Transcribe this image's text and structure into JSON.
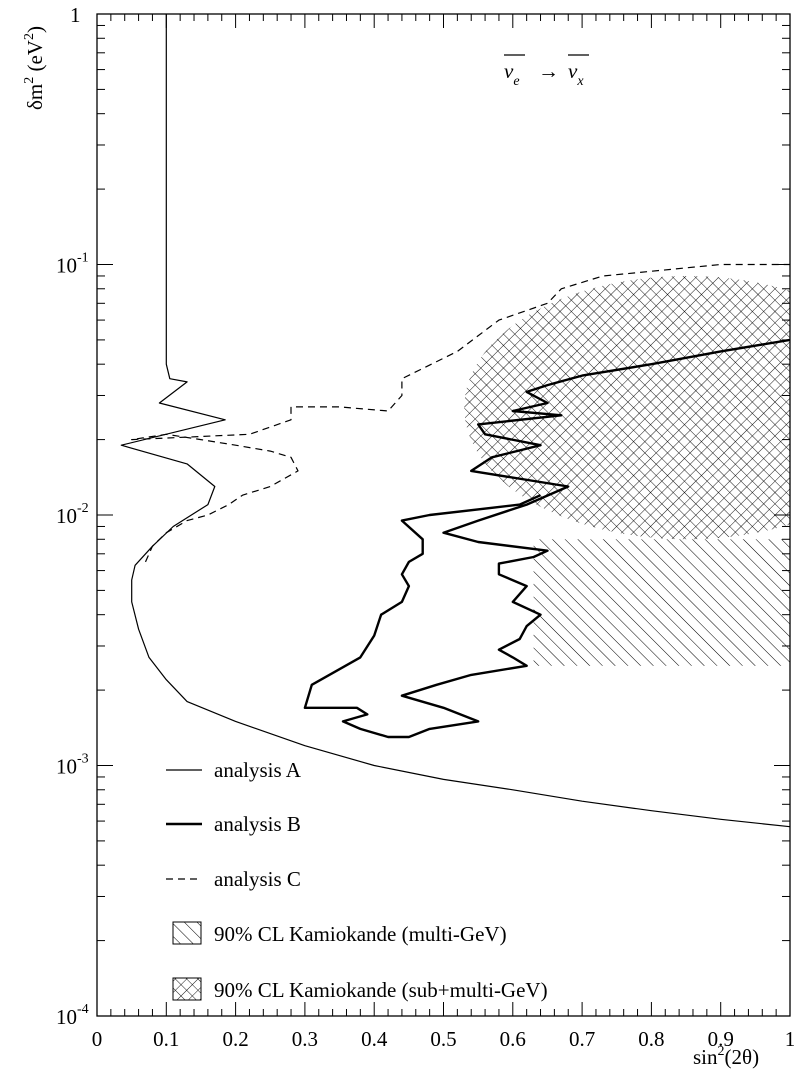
{
  "chart_data": {
    "type": "line",
    "title": "",
    "annotation": {
      "nu_left": "ν",
      "nu_left_sub": "e",
      "arrow": "→",
      "nu_right": "ν",
      "nu_right_sub": "x"
    },
    "xlabel": {
      "base": "sin",
      "sup": "2",
      "rest": "(2θ)"
    },
    "ylabel": {
      "base": "δm",
      "sup": "2",
      "unit_open": " (eV",
      "unit_sup": "2",
      "unit_close": ")"
    },
    "xlim": [
      0,
      1
    ],
    "ylim": [
      0.0001,
      1
    ],
    "yscale": "log",
    "xticks": [
      "0",
      "0.1",
      "0.2",
      "0.3",
      "0.4",
      "0.5",
      "0.6",
      "0.7",
      "0.8",
      "0.9",
      "1"
    ],
    "yticks": [
      {
        "base": "1",
        "exp": ""
      },
      {
        "base": "10",
        "exp": "-1"
      },
      {
        "base": "10",
        "exp": "-2"
      },
      {
        "base": "10",
        "exp": "-3"
      },
      {
        "base": "10",
        "exp": "-4"
      }
    ],
    "legend_position": "bottom-left",
    "legend": [
      {
        "label": "analysis A",
        "style": "thin-solid"
      },
      {
        "label": "analysis B",
        "style": "thick-solid"
      },
      {
        "label": "analysis C",
        "style": "dashed"
      },
      {
        "label": "90% CL Kamiokande (multi-GeV)",
        "style": "hatch"
      },
      {
        "label": "90% CL Kamiokande (sub+multi-GeV)",
        "style": "crosshatch"
      }
    ],
    "series": [
      {
        "name": "analysis A",
        "style": "thin-solid",
        "x": [
          0.1,
          0.1,
          0.1,
          0.1,
          0.1,
          0.1,
          0.1,
          0.1,
          0.105,
          0.13,
          0.09,
          0.185,
          0.035,
          0.13,
          0.17,
          0.16,
          0.11,
          0.08,
          0.055,
          0.05,
          0.05,
          0.06,
          0.075,
          0.1,
          0.13,
          0.2,
          0.3,
          0.4,
          0.5,
          0.6,
          0.7,
          0.8,
          0.9,
          1.0
        ],
        "y": [
          1.0,
          0.5,
          0.3,
          0.2,
          0.1,
          0.07,
          0.05,
          0.04,
          0.035,
          0.034,
          0.028,
          0.024,
          0.019,
          0.016,
          0.013,
          0.011,
          0.009,
          0.0075,
          0.0063,
          0.0055,
          0.0045,
          0.0035,
          0.0027,
          0.0022,
          0.0018,
          0.0015,
          0.0012,
          0.001,
          0.00088,
          0.0008,
          0.00072,
          0.00066,
          0.00061,
          0.00057
        ]
      },
      {
        "name": "analysis B",
        "style": "thick-solid",
        "x": [
          0.64,
          0.61,
          0.48,
          0.44,
          0.47,
          0.47,
          0.45,
          0.44,
          0.45,
          0.44,
          0.41,
          0.4,
          0.38,
          0.31,
          0.3,
          0.375,
          0.39,
          0.355,
          0.38,
          0.42,
          0.45,
          0.48,
          0.55,
          0.5,
          0.44,
          0.49,
          0.54,
          0.62,
          0.6,
          0.58,
          0.61,
          0.62,
          0.64,
          0.6,
          0.62,
          0.58,
          0.58,
          0.63,
          0.65,
          0.55,
          0.5,
          0.55,
          0.62,
          0.68,
          0.54,
          0.57,
          0.64,
          0.56,
          0.55,
          0.67,
          0.6,
          0.65,
          0.62,
          0.65,
          0.7,
          0.8,
          0.9,
          1.0
        ],
        "y": [
          0.012,
          0.011,
          0.01,
          0.0095,
          0.008,
          0.007,
          0.0065,
          0.0058,
          0.0052,
          0.0045,
          0.004,
          0.0033,
          0.0027,
          0.0021,
          0.0017,
          0.0017,
          0.0016,
          0.0015,
          0.0014,
          0.0013,
          0.0013,
          0.0014,
          0.0015,
          0.0017,
          0.0019,
          0.0021,
          0.0023,
          0.0025,
          0.0027,
          0.0029,
          0.0032,
          0.0036,
          0.004,
          0.0045,
          0.0052,
          0.0058,
          0.0064,
          0.0068,
          0.0072,
          0.0078,
          0.0085,
          0.0095,
          0.011,
          0.013,
          0.015,
          0.017,
          0.019,
          0.021,
          0.023,
          0.025,
          0.026,
          0.028,
          0.031,
          0.033,
          0.036,
          0.04,
          0.045,
          0.05
        ]
      },
      {
        "name": "analysis C",
        "style": "dashed",
        "x": [
          0.07,
          0.08,
          0.1,
          0.13,
          0.16,
          0.19,
          0.21,
          0.25,
          0.29,
          0.28,
          0.25,
          0.2,
          0.15,
          0.1,
          0.05,
          0.22,
          0.28,
          0.28,
          0.35,
          0.42,
          0.44,
          0.44,
          0.52,
          0.58,
          0.65,
          0.67,
          0.73,
          0.9,
          1.0
        ],
        "y": [
          0.0065,
          0.0075,
          0.0085,
          0.0095,
          0.01,
          0.011,
          0.012,
          0.013,
          0.015,
          0.017,
          0.018,
          0.019,
          0.02,
          0.021,
          0.02,
          0.021,
          0.024,
          0.027,
          0.027,
          0.026,
          0.03,
          0.035,
          0.045,
          0.06,
          0.07,
          0.08,
          0.09,
          0.1,
          0.1
        ]
      }
    ],
    "regions": [
      {
        "name": "90% CL Kamiokande (multi-GeV)",
        "style": "hatch",
        "x_range": [
          0.63,
          1.0
        ],
        "y_range": [
          0.0025,
          0.008
        ]
      },
      {
        "name": "90% CL Kamiokande (sub+multi-GeV)",
        "style": "crosshatch",
        "x_range": [
          0.53,
          1.0
        ],
        "y_range": [
          0.008,
          0.09
        ]
      }
    ]
  }
}
